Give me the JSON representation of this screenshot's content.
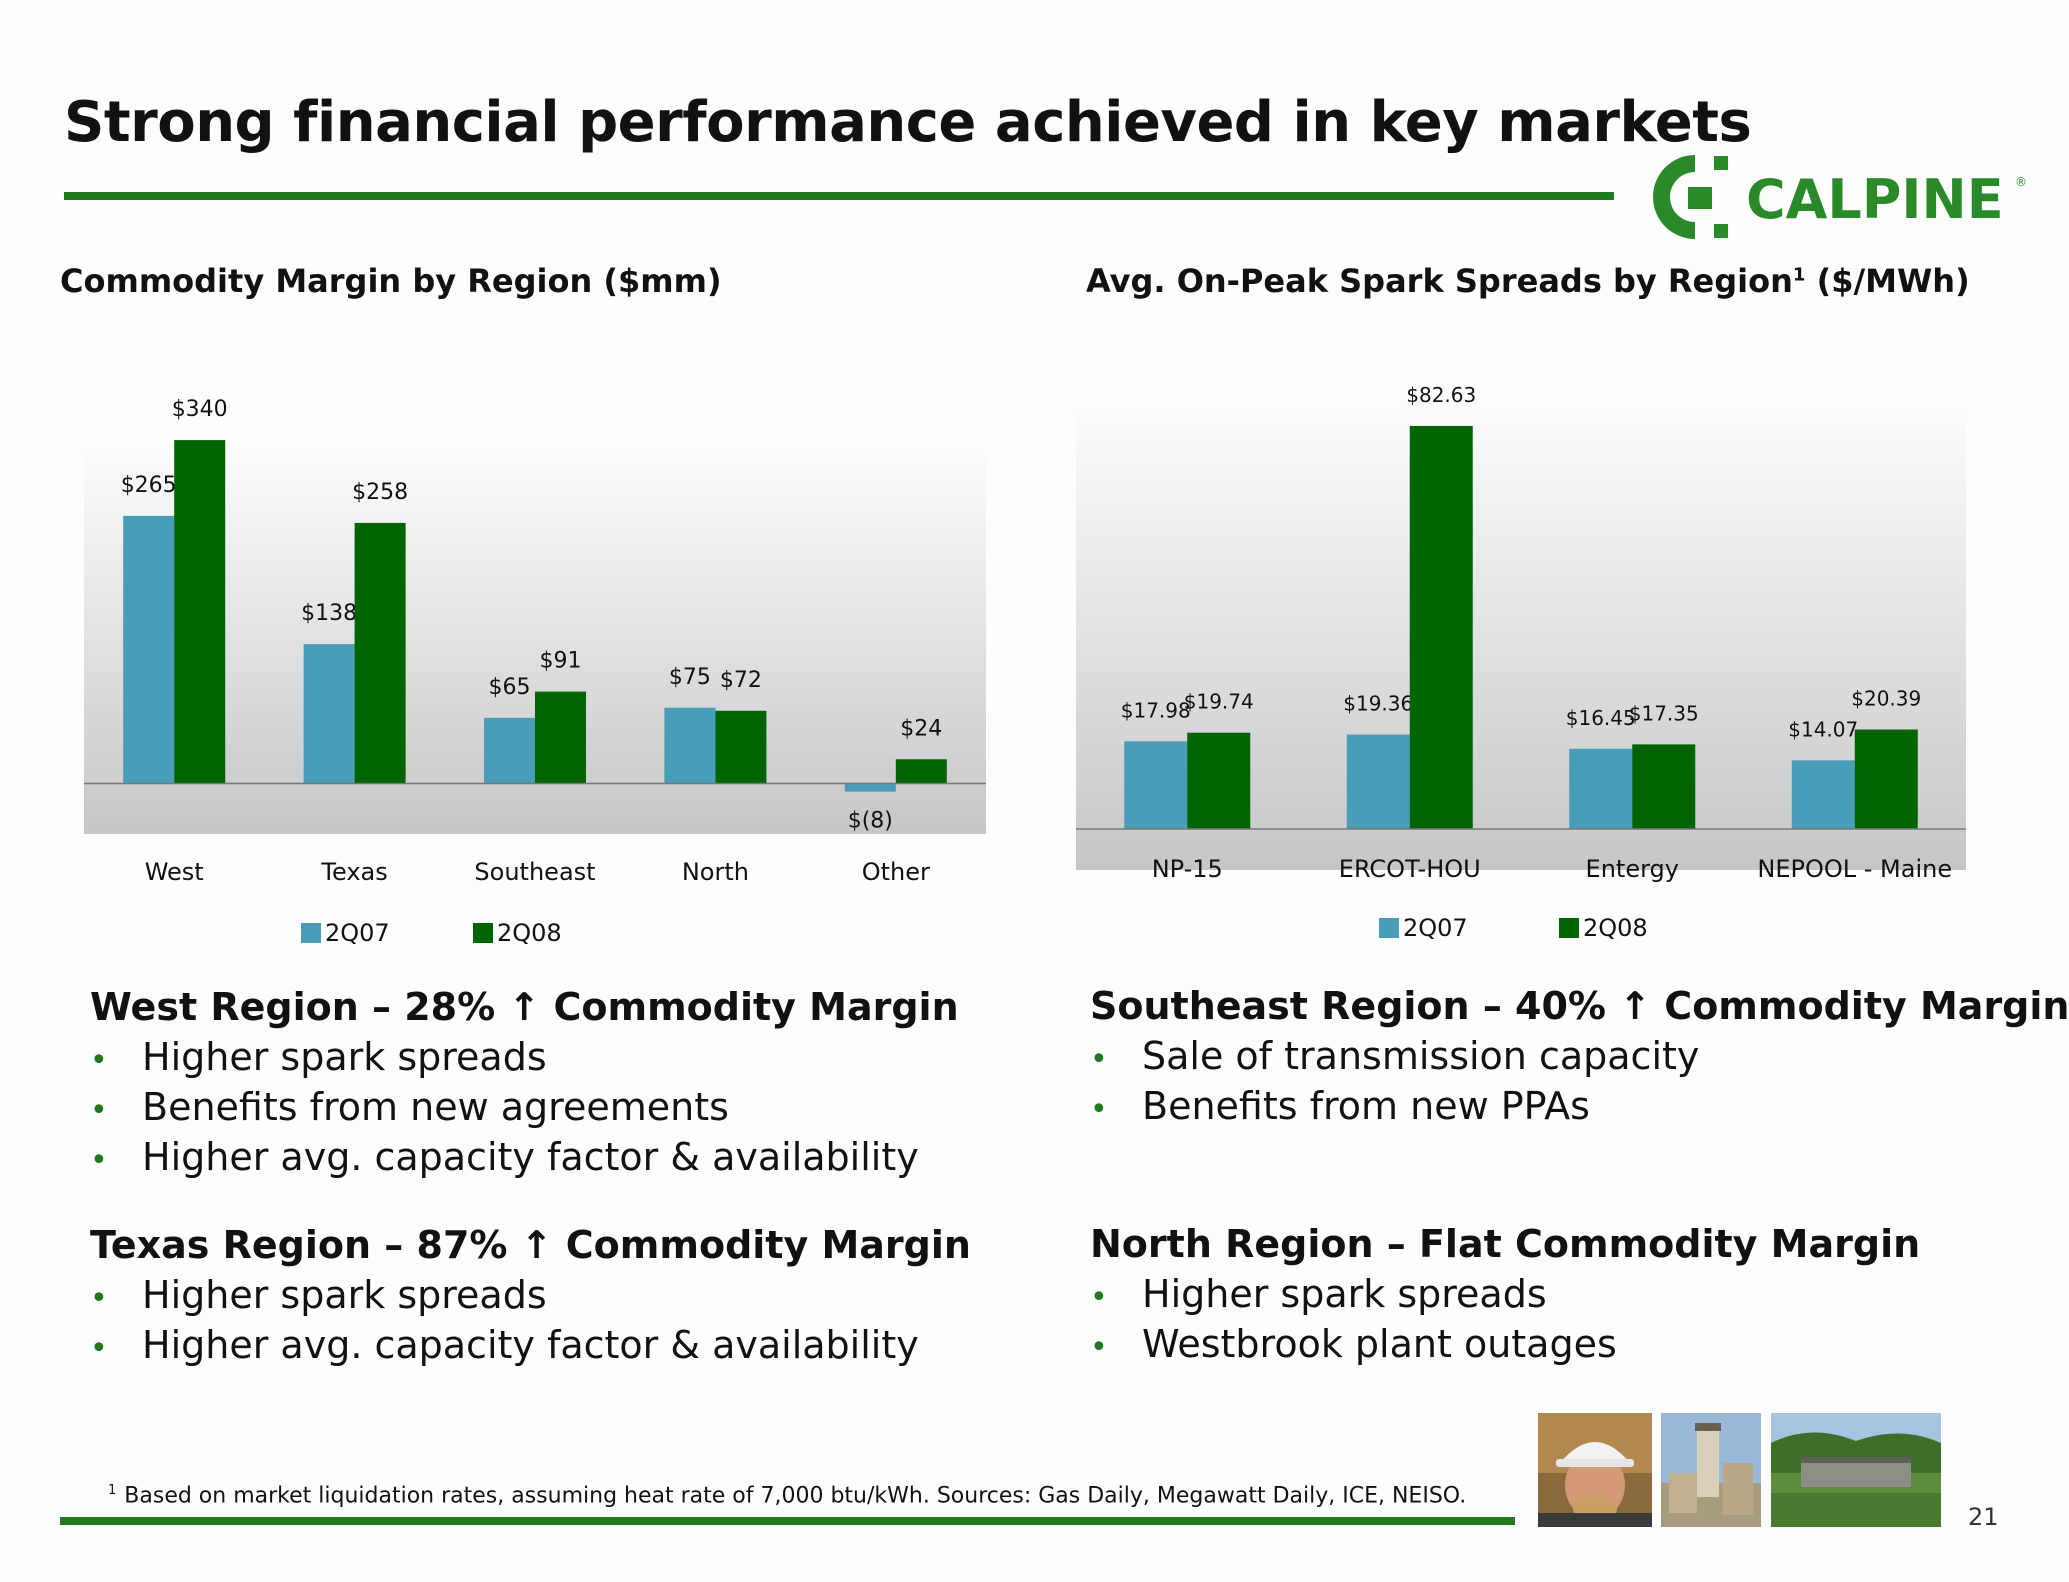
{
  "header": {
    "title": "Strong financial performance achieved in key markets",
    "logo_text": "CALPINE",
    "logo_mark": "®"
  },
  "colors": {
    "series_2q07": "#4a9db8",
    "series_2q08": "#006400",
    "accent": "#1f7a1f"
  },
  "left_chart": {
    "heading": "Commodity Margin by Region ($mm)"
  },
  "right_chart": {
    "heading_main": "Avg. On-Peak Spark Spreads by Region",
    "heading_sup": "1",
    "heading_units": "($/MWh)"
  },
  "chart_data": [
    {
      "type": "bar",
      "title": "Commodity Margin by Region ($mm)",
      "categories": [
        "West",
        "Texas",
        "Southeast",
        "North",
        "Other"
      ],
      "series": [
        {
          "name": "2Q07",
          "values": [
            265,
            138,
            65,
            75,
            -8
          ],
          "labels": [
            "$265",
            "$138",
            "$65",
            "$75",
            "$(8)"
          ]
        },
        {
          "name": "2Q08",
          "values": [
            340,
            258,
            91,
            72,
            24
          ],
          "labels": [
            "$340",
            "$258",
            "$91",
            "$72",
            "$24"
          ]
        }
      ],
      "ylim": [
        -50,
        350
      ],
      "legend": "bottom",
      "grid": false
    },
    {
      "type": "bar",
      "title": "Avg. On-Peak Spark Spreads by Region ($/MWh)",
      "categories": [
        "NP-15",
        "ERCOT-HOU",
        "Entergy",
        "NEPOOL - Maine"
      ],
      "series": [
        {
          "name": "2Q07",
          "values": [
            17.98,
            19.36,
            16.45,
            14.07
          ],
          "labels": [
            "$17.98",
            "$19.36",
            "$16.45",
            "$14.07"
          ]
        },
        {
          "name": "2Q08",
          "values": [
            19.74,
            82.63,
            17.35,
            20.39
          ],
          "labels": [
            "$19.74",
            "$82.63",
            "$17.35",
            "$20.39"
          ]
        }
      ],
      "ylim": [
        0,
        90
      ],
      "legend": "bottom",
      "grid": false
    }
  ],
  "sections": {
    "west": {
      "title": "West Region – 28% ↑ Commodity Margin",
      "bullets": [
        "Higher spark spreads",
        "Benefits from new agreements",
        "Higher avg. capacity factor & availability"
      ]
    },
    "texas": {
      "title": "Texas Region – 87% ↑ Commodity Margin",
      "bullets": [
        "Higher spark spreads",
        "Higher avg. capacity factor & availability"
      ]
    },
    "southeast": {
      "title": "Southeast Region – 40% ↑ Commodity Margin",
      "bullets": [
        "Sale of transmission capacity",
        "Benefits from new PPAs"
      ]
    },
    "north": {
      "title": "North Region – Flat Commodity Margin",
      "bullets": [
        "Higher spark spreads",
        "Westbrook plant outages"
      ]
    }
  },
  "footer": {
    "footnote_mark": "1",
    "footnote": "Based on market liquidation rates, assuming heat rate of 7,000 btu/kWh.  Sources:  Gas Daily, Megawatt Daily, ICE, NEISO.",
    "page_number": "21"
  }
}
